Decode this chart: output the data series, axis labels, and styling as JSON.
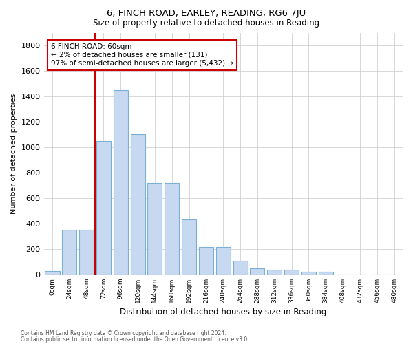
{
  "title1": "6, FINCH ROAD, EARLEY, READING, RG6 7JU",
  "title2": "Size of property relative to detached houses in Reading",
  "xlabel": "Distribution of detached houses by size in Reading",
  "ylabel": "Number of detached properties",
  "categories": [
    "0sqm",
    "24sqm",
    "48sqm",
    "72sqm",
    "96sqm",
    "120sqm",
    "144sqm",
    "168sqm",
    "192sqm",
    "216sqm",
    "240sqm",
    "264sqm",
    "288sqm",
    "312sqm",
    "336sqm",
    "360sqm",
    "384sqm",
    "408sqm",
    "432sqm",
    "456sqm",
    "480sqm"
  ],
  "values": [
    25,
    350,
    350,
    1050,
    1450,
    1100,
    720,
    720,
    430,
    215,
    215,
    105,
    50,
    35,
    35,
    20,
    20,
    0,
    0,
    0,
    0
  ],
  "bar_color": "#c6d9f0",
  "bar_edge_color": "#7bafd4",
  "ylim": [
    0,
    1900
  ],
  "yticks": [
    0,
    200,
    400,
    600,
    800,
    1000,
    1200,
    1400,
    1600,
    1800
  ],
  "vline_x_index": 2.5,
  "annotation_title": "6 FINCH ROAD: 60sqm",
  "annotation_line1": "← 2% of detached houses are smaller (131)",
  "annotation_line2": "97% of semi-detached houses are larger (5,432) →",
  "vline_color": "#cc0000",
  "annotation_box_color": "#ffffff",
  "annotation_box_edge": "#cc0000",
  "footer1": "Contains HM Land Registry data © Crown copyright and database right 2024.",
  "footer2": "Contains public sector information licensed under the Open Government Licence v3.0.",
  "background_color": "#ffffff",
  "grid_color": "#c8c8c8"
}
